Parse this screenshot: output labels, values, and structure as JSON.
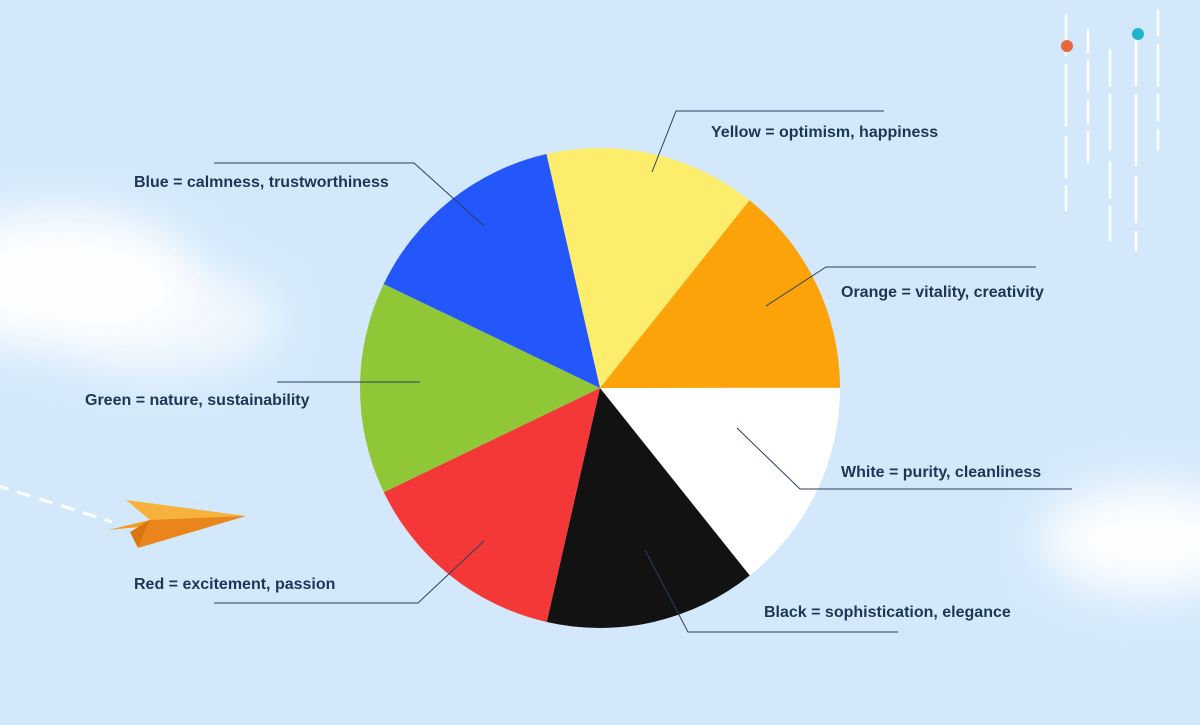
{
  "chart_data": {
    "type": "pie",
    "slices": [
      {
        "label": "Yellow = optimism, happiness",
        "value": 1,
        "color": "#fded6d"
      },
      {
        "label": "Orange = vitality, creativity",
        "value": 1,
        "color": "#fda30a"
      },
      {
        "label": "White = purity, cleanliness",
        "value": 1,
        "color": "#ffffff"
      },
      {
        "label": "Black = sophistication, elegance",
        "value": 1,
        "color": "#121212"
      },
      {
        "label": "Red = excitement, passion",
        "value": 1,
        "color": "#f43838"
      },
      {
        "label": "Green = nature, sustainability",
        "value": 1,
        "color": "#8fc736"
      },
      {
        "label": "Blue = calmness, trustworthiness",
        "value": 1,
        "color": "#2457fb"
      }
    ]
  },
  "theme": {
    "background": "#d3e9fb",
    "leader_line": "#2a3f5c",
    "dot_orange": "#e8663d",
    "dot_teal": "#1fb4cc"
  },
  "decorations": [
    "paper-plane-icon",
    "cloud",
    "dashed-flight-path",
    "vertical-dashed-lines"
  ]
}
